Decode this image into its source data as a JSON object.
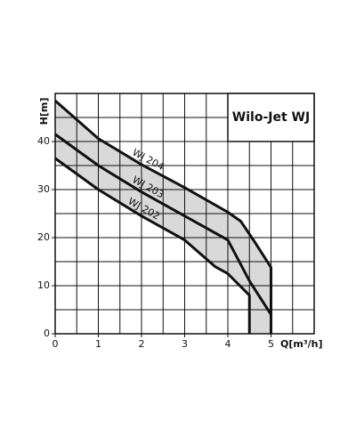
{
  "chart_data": {
    "type": "line",
    "title": "Wilo-Jet WJ",
    "x_label": "Q[m³/h]",
    "y_label": "H[m]",
    "xlim": [
      0,
      6
    ],
    "ylim": [
      0,
      50
    ],
    "xticks": [
      0,
      1,
      2,
      3,
      4,
      5
    ],
    "yticks": [
      0,
      10,
      20,
      30,
      40
    ],
    "grid": true,
    "band_color": "#d9d9d9",
    "series": [
      {
        "name": "WJ 204",
        "color": "#111111",
        "x": [
          0,
          1,
          2,
          3,
          4,
          4.3,
          4.6,
          5,
          5
        ],
        "values": [
          48.5,
          40.6,
          35.2,
          30.4,
          25.3,
          23.4,
          19.4,
          13.8,
          0
        ]
      },
      {
        "name": "WJ 203",
        "color": "#111111",
        "x": [
          0,
          1,
          2,
          3,
          3.5,
          4,
          4.5,
          5,
          5
        ],
        "values": [
          41.5,
          35,
          29.5,
          24.5,
          22,
          19.5,
          11,
          4,
          0
        ]
      },
      {
        "name": "WJ 202",
        "color": "#111111",
        "x": [
          0,
          1,
          2,
          3,
          3.7,
          4,
          4.5,
          4.5
        ],
        "values": [
          36.5,
          30,
          24.5,
          19.5,
          14,
          12.5,
          8,
          0
        ]
      }
    ]
  }
}
